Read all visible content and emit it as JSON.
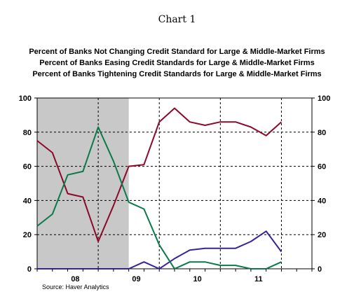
{
  "chart_data": {
    "type": "line",
    "title": "Chart 1",
    "source": "Source: Haver Analytics",
    "x_tick_labels": [
      "08",
      "09",
      "10",
      "11"
    ],
    "ylim": [
      0,
      100
    ],
    "y_ticks": [
      0,
      20,
      40,
      60,
      80,
      100
    ],
    "y_tick_labels": [
      "0",
      "20",
      "40",
      "60",
      "80",
      "100"
    ],
    "grid": true,
    "shaded_region": {
      "start": "2007Q4",
      "end": "2009Q2",
      "color": "#c8c8c8"
    },
    "x": [
      "2007Q4",
      "2008Q1",
      "2008Q2",
      "2008Q3",
      "2008Q4",
      "2009Q1",
      "2009Q2",
      "2009Q3",
      "2009Q4",
      "2010Q1",
      "2010Q2",
      "2010Q3",
      "2010Q4",
      "2011Q1",
      "2011Q2",
      "2011Q3",
      "2011Q4",
      "2012Q1",
      "2012Q2"
    ],
    "series": [
      {
        "name": "Percent of Banks Not Changing Credit Standard for Large & Middle-Market Firms",
        "color": "#8b0a2a",
        "values": [
          75,
          68,
          44,
          42,
          16,
          37,
          60,
          61,
          86,
          94,
          86,
          84,
          86,
          86,
          83,
          78,
          86,
          null,
          null
        ]
      },
      {
        "name": "Percent of Banks Easing Credit Standards for Large & Middle-Market Firms",
        "color": "#3a229a",
        "values": [
          0,
          0,
          0,
          0,
          0,
          0,
          0,
          4,
          0,
          6,
          11,
          12,
          12,
          12,
          16,
          22,
          10,
          null,
          null
        ]
      },
      {
        "name": "Percent of Banks Tightening Credit Standards for Large & Middle-Market Firms",
        "color": "#0a7a4a",
        "values": [
          25,
          32,
          55,
          57,
          83,
          63,
          39,
          35,
          14,
          0,
          4,
          4,
          2,
          2,
          0,
          0,
          4,
          null,
          null
        ]
      }
    ]
  }
}
